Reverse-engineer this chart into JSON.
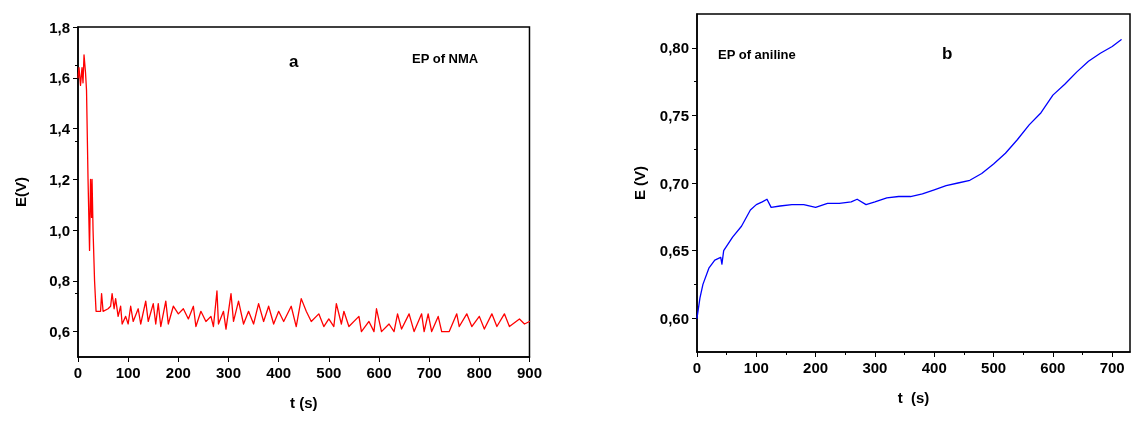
{
  "chart_data": [
    {
      "type": "line",
      "title": "a",
      "xlabel": "t (s)",
      "ylabel": "E(V)",
      "annotations": [
        "EP of NMA"
      ],
      "series": [
        {
          "color": "#ff0000",
          "x": [
            0,
            2,
            5,
            8,
            10,
            12,
            15,
            17,
            20,
            23,
            25,
            27,
            28,
            30,
            33,
            36,
            45,
            47,
            50,
            60,
            65,
            68,
            72,
            75,
            80,
            85,
            88,
            95,
            100,
            105,
            110,
            120,
            125,
            135,
            140,
            150,
            155,
            160,
            165,
            175,
            180,
            190,
            200,
            210,
            220,
            230,
            235,
            245,
            255,
            265,
            270,
            277,
            280,
            290,
            295,
            305,
            310,
            320,
            330,
            340,
            350,
            360,
            370,
            380,
            390,
            400,
            410,
            425,
            435,
            445,
            455,
            465,
            480,
            490,
            500,
            510,
            515,
            525,
            530,
            540,
            560,
            565,
            580,
            590,
            595,
            605,
            620,
            630,
            637,
            645,
            660,
            670,
            685,
            690,
            698,
            705,
            718,
            725,
            740,
            755,
            760,
            775,
            785,
            800,
            810,
            825,
            835,
            850,
            860,
            880,
            890,
            900
          ],
          "values": [
            1.6,
            1.64,
            1.57,
            1.64,
            1.58,
            1.69,
            1.62,
            1.55,
            1.2,
            0.92,
            1.2,
            1.05,
            1.2,
            1.0,
            0.8,
            0.68,
            0.68,
            0.75,
            0.68,
            0.69,
            0.7,
            0.75,
            0.69,
            0.73,
            0.66,
            0.7,
            0.63,
            0.66,
            0.63,
            0.7,
            0.64,
            0.69,
            0.63,
            0.72,
            0.64,
            0.71,
            0.63,
            0.71,
            0.62,
            0.72,
            0.63,
            0.7,
            0.67,
            0.69,
            0.65,
            0.7,
            0.62,
            0.68,
            0.64,
            0.66,
            0.62,
            0.76,
            0.63,
            0.68,
            0.61,
            0.75,
            0.64,
            0.72,
            0.63,
            0.68,
            0.63,
            0.71,
            0.64,
            0.7,
            0.63,
            0.68,
            0.64,
            0.7,
            0.62,
            0.73,
            0.68,
            0.64,
            0.67,
            0.62,
            0.65,
            0.62,
            0.71,
            0.63,
            0.68,
            0.62,
            0.66,
            0.6,
            0.64,
            0.6,
            0.69,
            0.6,
            0.63,
            0.6,
            0.67,
            0.61,
            0.67,
            0.6,
            0.67,
            0.6,
            0.67,
            0.6,
            0.66,
            0.6,
            0.6,
            0.67,
            0.62,
            0.67,
            0.62,
            0.66,
            0.61,
            0.67,
            0.62,
            0.67,
            0.62,
            0.65,
            0.63,
            0.64
          ]
        }
      ],
      "xlim": [
        0,
        900
      ],
      "xticks": [
        0,
        100,
        200,
        300,
        400,
        500,
        600,
        700,
        800,
        900
      ],
      "ylim": [
        0.5,
        1.8
      ],
      "yticks": [
        {
          "value": 0.6,
          "label": "0,6"
        },
        {
          "value": 0.8,
          "label": "0,8"
        },
        {
          "value": 1.0,
          "label": "1,0"
        },
        {
          "value": 1.2,
          "label": "1,2"
        },
        {
          "value": 1.4,
          "label": "1,4"
        },
        {
          "value": 1.6,
          "label": "1,6"
        },
        {
          "value": 1.8,
          "label": "1,8"
        }
      ],
      "grid": false,
      "marker": "none",
      "line_style": "solid"
    },
    {
      "type": "line",
      "title": "b",
      "xlabel": "t  (s)",
      "ylabel": "E (V)",
      "annotations": [
        "EP of aniline"
      ],
      "series": [
        {
          "color": "#0000ff",
          "x": [
            0,
            5,
            10,
            20,
            30,
            40,
            42,
            45,
            60,
            75,
            90,
            100,
            110,
            118,
            125,
            140,
            160,
            180,
            200,
            220,
            240,
            260,
            270,
            285,
            300,
            320,
            340,
            360,
            380,
            400,
            420,
            440,
            460,
            480,
            500,
            520,
            540,
            560,
            580,
            600,
            620,
            640,
            660,
            680,
            700,
            715
          ],
          "values": [
            0.6,
            0.615,
            0.625,
            0.637,
            0.643,
            0.645,
            0.64,
            0.65,
            0.66,
            0.668,
            0.68,
            0.684,
            0.686,
            0.688,
            0.682,
            0.683,
            0.684,
            0.684,
            0.682,
            0.685,
            0.685,
            0.686,
            0.688,
            0.684,
            0.686,
            0.689,
            0.69,
            0.69,
            0.692,
            0.695,
            0.698,
            0.7,
            0.702,
            0.707,
            0.714,
            0.722,
            0.732,
            0.743,
            0.752,
            0.765,
            0.773,
            0.782,
            0.79,
            0.796,
            0.801,
            0.806
          ]
        }
      ],
      "xlim": [
        0,
        730
      ],
      "xticks": [
        0,
        100,
        200,
        300,
        400,
        500,
        600,
        700
      ],
      "ylim": [
        0.575,
        0.825
      ],
      "yticks": [
        {
          "value": 0.6,
          "label": "0,60"
        },
        {
          "value": 0.65,
          "label": "0,65"
        },
        {
          "value": 0.7,
          "label": "0,70"
        },
        {
          "value": 0.75,
          "label": "0,75"
        },
        {
          "value": 0.8,
          "label": "0,80"
        }
      ],
      "grid": false,
      "marker": "none",
      "line_style": "solid"
    }
  ]
}
